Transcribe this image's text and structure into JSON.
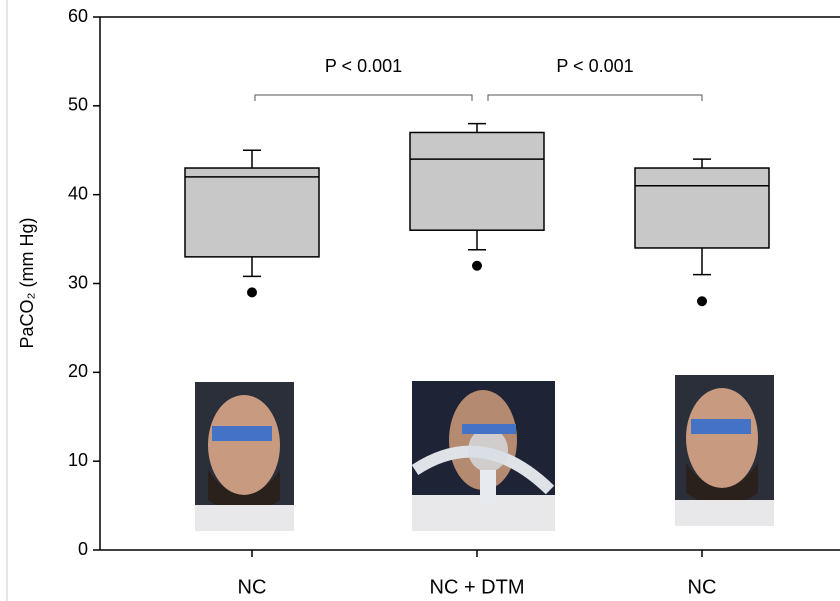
{
  "chart_data": {
    "type": "box",
    "y_label": "PaCO₂ (mm Hg)",
    "categories": [
      "NC",
      "NC + DTM",
      "NC"
    ],
    "boxes": [
      {
        "whisker_low": 30.8,
        "q1": 33,
        "median": 42,
        "q3": 43,
        "whisker_high": 45,
        "outliers": [
          29
        ]
      },
      {
        "whisker_low": 33.8,
        "q1": 36,
        "median": 44,
        "q3": 47,
        "whisker_high": 48,
        "outliers": [
          32
        ]
      },
      {
        "whisker_low": 31,
        "q1": 34,
        "median": 41,
        "q3": 43,
        "whisker_high": 44,
        "outliers": [
          28
        ]
      }
    ],
    "color": "#c8c8c8",
    "annotations": [
      "P < 0.001",
      "P < 0.001"
    ],
    "ylim": [
      0,
      60
    ],
    "yticks": [
      0,
      10,
      20,
      30,
      40,
      50,
      60
    ]
  }
}
